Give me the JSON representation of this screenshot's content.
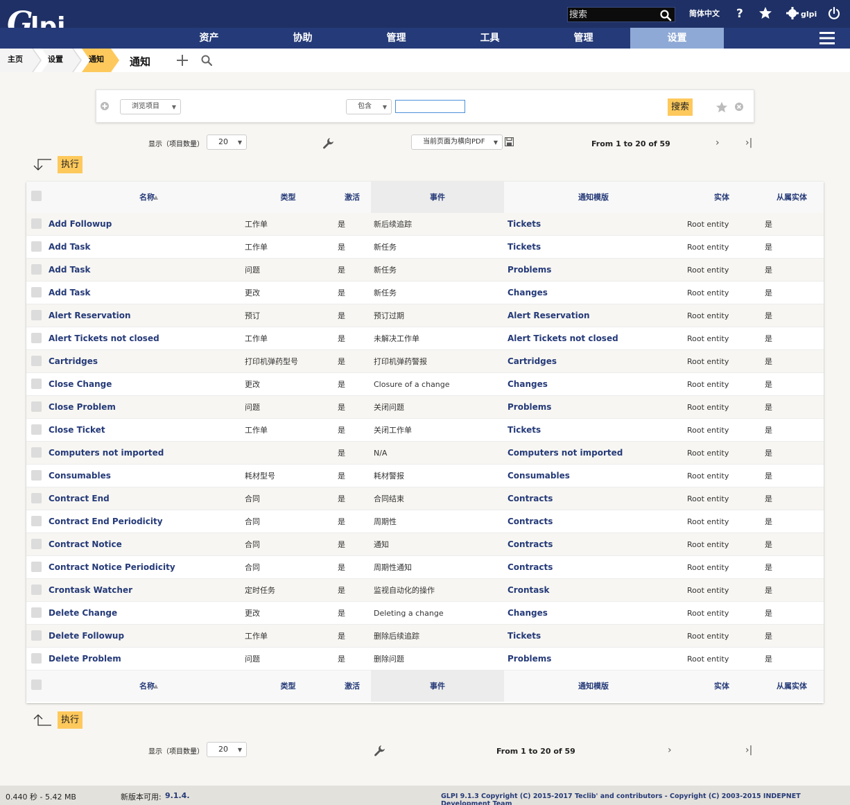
{
  "header": {
    "search_placeholder": "搜索",
    "language": "简体中文",
    "user": "glpi"
  },
  "menu": [
    "资产",
    "协助",
    "管理",
    "工具",
    "管理",
    "设置"
  ],
  "breadcrumb": {
    "home": "主页",
    "setup": "设置",
    "notif": "通知",
    "current": "通知"
  },
  "criteria": {
    "field": "浏览项目",
    "operator": "包含",
    "value": "",
    "search_label": "搜索"
  },
  "pager": {
    "display_label": "显示（项目数量）",
    "page_size": "20",
    "export_option": "当前页面为横向PDF",
    "range": "From 1 to 20 of 59"
  },
  "actions": {
    "execute_label": "执行"
  },
  "table": {
    "headers": {
      "name": "名称",
      "type": "类型",
      "active": "激活",
      "event": "事件",
      "template": "通知模版",
      "entity": "实体",
      "sub_entity": "从属实体"
    },
    "rows": [
      {
        "name": "Add Followup",
        "type": "工作单",
        "active": "是",
        "event": "新后续追踪",
        "template": "Tickets",
        "entity": "Root entity",
        "sub": "是"
      },
      {
        "name": "Add Task",
        "type": "工作单",
        "active": "是",
        "event": "新任务",
        "template": "Tickets",
        "entity": "Root entity",
        "sub": "是"
      },
      {
        "name": "Add Task",
        "type": "问题",
        "active": "是",
        "event": "新任务",
        "template": "Problems",
        "entity": "Root entity",
        "sub": "是"
      },
      {
        "name": "Add Task",
        "type": "更改",
        "active": "是",
        "event": "新任务",
        "template": "Changes",
        "entity": "Root entity",
        "sub": "是"
      },
      {
        "name": "Alert Reservation",
        "type": "预订",
        "active": "是",
        "event": "预订过期",
        "template": "Alert Reservation",
        "entity": "Root entity",
        "sub": "是"
      },
      {
        "name": "Alert Tickets not closed",
        "type": "工作单",
        "active": "是",
        "event": "未解决工作单",
        "template": "Alert Tickets not closed",
        "entity": "Root entity",
        "sub": "是"
      },
      {
        "name": "Cartridges",
        "type": "打印机弹药型号",
        "active": "是",
        "event": "打印机弹药警报",
        "template": "Cartridges",
        "entity": "Root entity",
        "sub": "是"
      },
      {
        "name": "Close Change",
        "type": "更改",
        "active": "是",
        "event": "Closure of a change",
        "template": "Changes",
        "entity": "Root entity",
        "sub": "是"
      },
      {
        "name": "Close Problem",
        "type": "问题",
        "active": "是",
        "event": "关闭问题",
        "template": "Problems",
        "entity": "Root entity",
        "sub": "是"
      },
      {
        "name": "Close Ticket",
        "type": "工作单",
        "active": "是",
        "event": "关闭工作单",
        "template": "Tickets",
        "entity": "Root entity",
        "sub": "是"
      },
      {
        "name": "Computers not imported",
        "type": "",
        "active": "是",
        "event": "N/A",
        "template": "Computers not imported",
        "entity": "Root entity",
        "sub": "是"
      },
      {
        "name": "Consumables",
        "type": "耗材型号",
        "active": "是",
        "event": "耗材警报",
        "template": "Consumables",
        "entity": "Root entity",
        "sub": "是"
      },
      {
        "name": "Contract End",
        "type": "合同",
        "active": "是",
        "event": "合同结束",
        "template": "Contracts",
        "entity": "Root entity",
        "sub": "是"
      },
      {
        "name": "Contract End Periodicity",
        "type": "合同",
        "active": "是",
        "event": "周期性",
        "template": "Contracts",
        "entity": "Root entity",
        "sub": "是"
      },
      {
        "name": "Contract Notice",
        "type": "合同",
        "active": "是",
        "event": "通知",
        "template": "Contracts",
        "entity": "Root entity",
        "sub": "是"
      },
      {
        "name": "Contract Notice Periodicity",
        "type": "合同",
        "active": "是",
        "event": "周期性通知",
        "template": "Contracts",
        "entity": "Root entity",
        "sub": "是"
      },
      {
        "name": "Crontask Watcher",
        "type": "定时任务",
        "active": "是",
        "event": "监视自动化的操作",
        "template": "Crontask",
        "entity": "Root entity",
        "sub": "是"
      },
      {
        "name": "Delete Change",
        "type": "更改",
        "active": "是",
        "event": "Deleting a change",
        "template": "Changes",
        "entity": "Root entity",
        "sub": "是"
      },
      {
        "name": "Delete Followup",
        "type": "工作单",
        "active": "是",
        "event": "删除后续追踪",
        "template": "Tickets",
        "entity": "Root entity",
        "sub": "是"
      },
      {
        "name": "Delete Problem",
        "type": "问题",
        "active": "是",
        "event": "删除问题",
        "template": "Problems",
        "entity": "Root entity",
        "sub": "是"
      }
    ]
  },
  "footer": {
    "timing": "0.440 秒 - 5.42 MB",
    "new_version_label": "新版本可用:",
    "new_version": "9.1.4.",
    "copyright": "GLPI 9.1.3 Copyright (C) 2015-2017 Teclib' and contributors - Copyright (C) 2003-2015 INDEPNET Development Team"
  },
  "colors": {
    "header": "#1e3065",
    "menu": "#253a78",
    "active_menu": "#8fa9d6",
    "accent": "#fec95c",
    "link": "#253a78"
  },
  "icons": [
    "search-icon",
    "help-icon",
    "star-icon",
    "gear-icon",
    "power-icon",
    "hamburger-icon",
    "plus-icon",
    "wrench-icon",
    "save-icon",
    "close-icon"
  ]
}
